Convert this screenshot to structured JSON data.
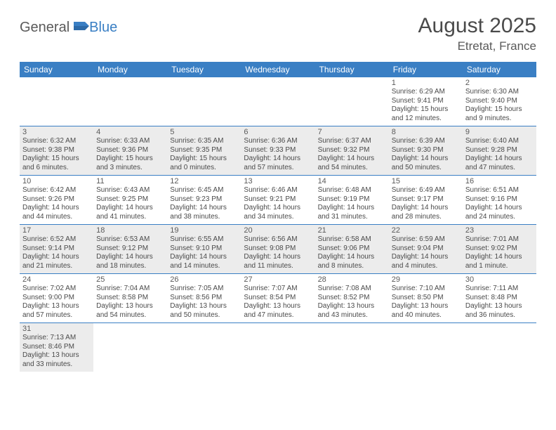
{
  "brand": {
    "part1": "General",
    "part2": "Blue"
  },
  "title": "August 2025",
  "location": "Etretat, France",
  "colors": {
    "header_bg": "#3a7fc4",
    "header_text": "#ffffff",
    "shade_bg": "#ececec",
    "text": "#4a4a4a",
    "border": "#3a7fc4"
  },
  "day_headers": [
    "Sunday",
    "Monday",
    "Tuesday",
    "Wednesday",
    "Thursday",
    "Friday",
    "Saturday"
  ],
  "weeks": [
    [
      {
        "empty": true
      },
      {
        "empty": true
      },
      {
        "empty": true
      },
      {
        "empty": true
      },
      {
        "empty": true
      },
      {
        "day": "1",
        "sunrise": "Sunrise: 6:29 AM",
        "sunset": "Sunset: 9:41 PM",
        "daylight1": "Daylight: 15 hours",
        "daylight2": "and 12 minutes.",
        "shaded": false
      },
      {
        "day": "2",
        "sunrise": "Sunrise: 6:30 AM",
        "sunset": "Sunset: 9:40 PM",
        "daylight1": "Daylight: 15 hours",
        "daylight2": "and 9 minutes.",
        "shaded": false
      }
    ],
    [
      {
        "day": "3",
        "sunrise": "Sunrise: 6:32 AM",
        "sunset": "Sunset: 9:38 PM",
        "daylight1": "Daylight: 15 hours",
        "daylight2": "and 6 minutes.",
        "shaded": true
      },
      {
        "day": "4",
        "sunrise": "Sunrise: 6:33 AM",
        "sunset": "Sunset: 9:36 PM",
        "daylight1": "Daylight: 15 hours",
        "daylight2": "and 3 minutes.",
        "shaded": true
      },
      {
        "day": "5",
        "sunrise": "Sunrise: 6:35 AM",
        "sunset": "Sunset: 9:35 PM",
        "daylight1": "Daylight: 15 hours",
        "daylight2": "and 0 minutes.",
        "shaded": true
      },
      {
        "day": "6",
        "sunrise": "Sunrise: 6:36 AM",
        "sunset": "Sunset: 9:33 PM",
        "daylight1": "Daylight: 14 hours",
        "daylight2": "and 57 minutes.",
        "shaded": true
      },
      {
        "day": "7",
        "sunrise": "Sunrise: 6:37 AM",
        "sunset": "Sunset: 9:32 PM",
        "daylight1": "Daylight: 14 hours",
        "daylight2": "and 54 minutes.",
        "shaded": true
      },
      {
        "day": "8",
        "sunrise": "Sunrise: 6:39 AM",
        "sunset": "Sunset: 9:30 PM",
        "daylight1": "Daylight: 14 hours",
        "daylight2": "and 50 minutes.",
        "shaded": true
      },
      {
        "day": "9",
        "sunrise": "Sunrise: 6:40 AM",
        "sunset": "Sunset: 9:28 PM",
        "daylight1": "Daylight: 14 hours",
        "daylight2": "and 47 minutes.",
        "shaded": true
      }
    ],
    [
      {
        "day": "10",
        "sunrise": "Sunrise: 6:42 AM",
        "sunset": "Sunset: 9:26 PM",
        "daylight1": "Daylight: 14 hours",
        "daylight2": "and 44 minutes.",
        "shaded": false
      },
      {
        "day": "11",
        "sunrise": "Sunrise: 6:43 AM",
        "sunset": "Sunset: 9:25 PM",
        "daylight1": "Daylight: 14 hours",
        "daylight2": "and 41 minutes.",
        "shaded": false
      },
      {
        "day": "12",
        "sunrise": "Sunrise: 6:45 AM",
        "sunset": "Sunset: 9:23 PM",
        "daylight1": "Daylight: 14 hours",
        "daylight2": "and 38 minutes.",
        "shaded": false
      },
      {
        "day": "13",
        "sunrise": "Sunrise: 6:46 AM",
        "sunset": "Sunset: 9:21 PM",
        "daylight1": "Daylight: 14 hours",
        "daylight2": "and 34 minutes.",
        "shaded": false
      },
      {
        "day": "14",
        "sunrise": "Sunrise: 6:48 AM",
        "sunset": "Sunset: 9:19 PM",
        "daylight1": "Daylight: 14 hours",
        "daylight2": "and 31 minutes.",
        "shaded": false
      },
      {
        "day": "15",
        "sunrise": "Sunrise: 6:49 AM",
        "sunset": "Sunset: 9:17 PM",
        "daylight1": "Daylight: 14 hours",
        "daylight2": "and 28 minutes.",
        "shaded": false
      },
      {
        "day": "16",
        "sunrise": "Sunrise: 6:51 AM",
        "sunset": "Sunset: 9:16 PM",
        "daylight1": "Daylight: 14 hours",
        "daylight2": "and 24 minutes.",
        "shaded": false
      }
    ],
    [
      {
        "day": "17",
        "sunrise": "Sunrise: 6:52 AM",
        "sunset": "Sunset: 9:14 PM",
        "daylight1": "Daylight: 14 hours",
        "daylight2": "and 21 minutes.",
        "shaded": true
      },
      {
        "day": "18",
        "sunrise": "Sunrise: 6:53 AM",
        "sunset": "Sunset: 9:12 PM",
        "daylight1": "Daylight: 14 hours",
        "daylight2": "and 18 minutes.",
        "shaded": true
      },
      {
        "day": "19",
        "sunrise": "Sunrise: 6:55 AM",
        "sunset": "Sunset: 9:10 PM",
        "daylight1": "Daylight: 14 hours",
        "daylight2": "and 14 minutes.",
        "shaded": true
      },
      {
        "day": "20",
        "sunrise": "Sunrise: 6:56 AM",
        "sunset": "Sunset: 9:08 PM",
        "daylight1": "Daylight: 14 hours",
        "daylight2": "and 11 minutes.",
        "shaded": true
      },
      {
        "day": "21",
        "sunrise": "Sunrise: 6:58 AM",
        "sunset": "Sunset: 9:06 PM",
        "daylight1": "Daylight: 14 hours",
        "daylight2": "and 8 minutes.",
        "shaded": true
      },
      {
        "day": "22",
        "sunrise": "Sunrise: 6:59 AM",
        "sunset": "Sunset: 9:04 PM",
        "daylight1": "Daylight: 14 hours",
        "daylight2": "and 4 minutes.",
        "shaded": true
      },
      {
        "day": "23",
        "sunrise": "Sunrise: 7:01 AM",
        "sunset": "Sunset: 9:02 PM",
        "daylight1": "Daylight: 14 hours",
        "daylight2": "and 1 minute.",
        "shaded": true
      }
    ],
    [
      {
        "day": "24",
        "sunrise": "Sunrise: 7:02 AM",
        "sunset": "Sunset: 9:00 PM",
        "daylight1": "Daylight: 13 hours",
        "daylight2": "and 57 minutes.",
        "shaded": false
      },
      {
        "day": "25",
        "sunrise": "Sunrise: 7:04 AM",
        "sunset": "Sunset: 8:58 PM",
        "daylight1": "Daylight: 13 hours",
        "daylight2": "and 54 minutes.",
        "shaded": false
      },
      {
        "day": "26",
        "sunrise": "Sunrise: 7:05 AM",
        "sunset": "Sunset: 8:56 PM",
        "daylight1": "Daylight: 13 hours",
        "daylight2": "and 50 minutes.",
        "shaded": false
      },
      {
        "day": "27",
        "sunrise": "Sunrise: 7:07 AM",
        "sunset": "Sunset: 8:54 PM",
        "daylight1": "Daylight: 13 hours",
        "daylight2": "and 47 minutes.",
        "shaded": false
      },
      {
        "day": "28",
        "sunrise": "Sunrise: 7:08 AM",
        "sunset": "Sunset: 8:52 PM",
        "daylight1": "Daylight: 13 hours",
        "daylight2": "and 43 minutes.",
        "shaded": false
      },
      {
        "day": "29",
        "sunrise": "Sunrise: 7:10 AM",
        "sunset": "Sunset: 8:50 PM",
        "daylight1": "Daylight: 13 hours",
        "daylight2": "and 40 minutes.",
        "shaded": false
      },
      {
        "day": "30",
        "sunrise": "Sunrise: 7:11 AM",
        "sunset": "Sunset: 8:48 PM",
        "daylight1": "Daylight: 13 hours",
        "daylight2": "and 36 minutes.",
        "shaded": false
      }
    ],
    [
      {
        "day": "31",
        "sunrise": "Sunrise: 7:13 AM",
        "sunset": "Sunset: 8:46 PM",
        "daylight1": "Daylight: 13 hours",
        "daylight2": "and 33 minutes.",
        "shaded": true
      },
      {
        "empty": true
      },
      {
        "empty": true
      },
      {
        "empty": true
      },
      {
        "empty": true
      },
      {
        "empty": true
      },
      {
        "empty": true
      }
    ]
  ]
}
